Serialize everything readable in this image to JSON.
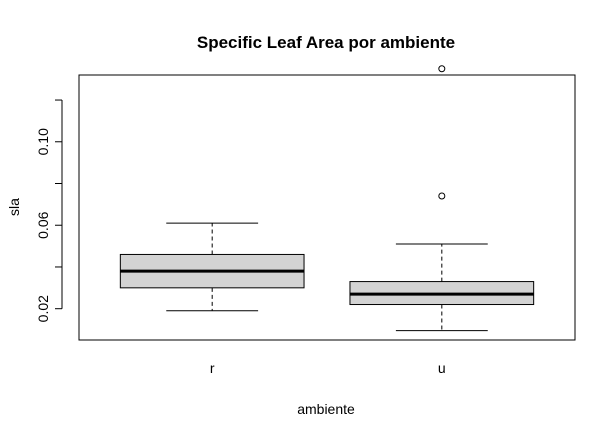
{
  "chart_data": {
    "type": "box",
    "title": "Specific Leaf Area por ambiente",
    "xlabel": "ambiente",
    "ylabel": "sla",
    "categories": [
      "r",
      "u"
    ],
    "ylim": [
      0.005,
      0.132
    ],
    "yticks": [
      0.02,
      0.06,
      0.1
    ],
    "ytick_labels": [
      "0.02",
      "0.06",
      "0.10"
    ],
    "ytick_marks": [
      0.02,
      0.04,
      0.06,
      0.08,
      0.1,
      0.12
    ],
    "box_fill": "#d3d3d3",
    "boxes": [
      {
        "category": "r",
        "whisker_low": 0.019,
        "q1": 0.03,
        "median": 0.038,
        "q3": 0.046,
        "whisker_high": 0.061,
        "outliers": []
      },
      {
        "category": "u",
        "whisker_low": 0.0095,
        "q1": 0.022,
        "median": 0.027,
        "q3": 0.033,
        "whisker_high": 0.051,
        "outliers": [
          0.074,
          0.135
        ]
      }
    ]
  }
}
